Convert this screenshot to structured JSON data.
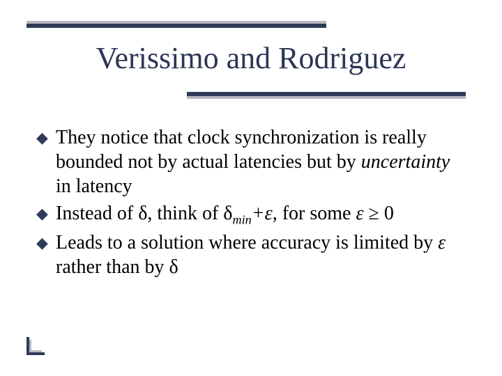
{
  "title": "Verissimo and Rodriguez",
  "bullets": {
    "b1_pre": "They notice that clock synchronization is really bounded not by actual latencies but by ",
    "b1_em": "uncertainty",
    "b1_post": " in latency",
    "b2_pre": "Instead of ",
    "b2_delta1": "δ",
    "b2_mid1": ", think of ",
    "b2_delta2": "δ",
    "b2_sub": "min",
    "b2_plus": "+",
    "b2_eps1": "ε",
    "b2_mid2": ", for some ",
    "b2_eps2": "ε ",
    "b2_geq": "≥",
    "b2_zero": " 0",
    "b3_pre": "Leads to a solution where accuracy is limited by ",
    "b3_eps": "ε",
    "b3_mid": " rather than by ",
    "b3_delta": "δ"
  },
  "marker": "◆",
  "colors": {
    "title": "#2c3655",
    "rule_dark": "#2f3a5a",
    "rule_light": "#b5b8c2",
    "text": "#000000",
    "background": "#ffffff"
  }
}
